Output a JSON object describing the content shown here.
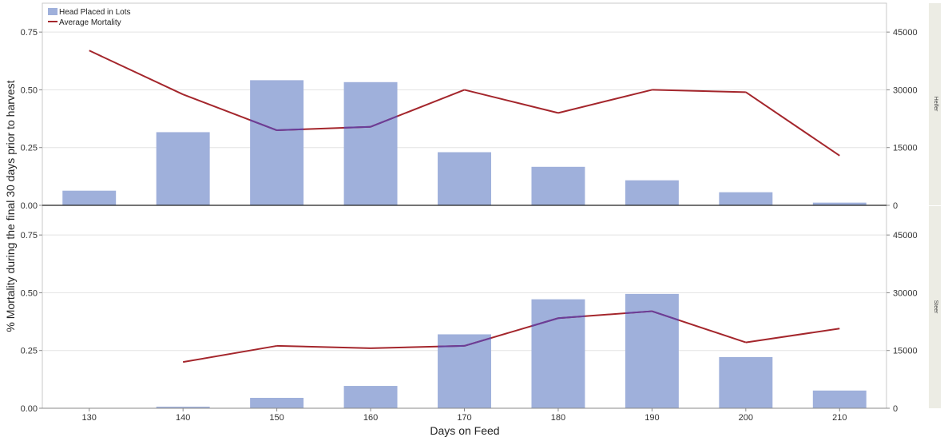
{
  "chart_data": {
    "type": "bar",
    "xlabel": "Days on Feed",
    "ylabel": "% Mortality during the final 30 days prior to harvest",
    "categories": [
      130,
      140,
      150,
      160,
      170,
      180,
      190,
      200,
      210
    ],
    "left_ylim": [
      0,
      0.875
    ],
    "left_ticks": [
      "0.00",
      "0.25",
      "0.50",
      "0.75"
    ],
    "right_ylim": [
      0,
      52500
    ],
    "right_ticks": [
      "0",
      "15000",
      "30000",
      "45000"
    ],
    "legend": {
      "position": "top-left",
      "bar_label": "Head Placed in Lots",
      "line_label": "Average Mortality"
    },
    "colors": {
      "bar": "#9fb0db",
      "line": "#a4262c",
      "overlap_line": "#6a3e9a"
    },
    "grid": true,
    "panels": [
      {
        "strip_label": "Heifer",
        "bars": [
          3800,
          19000,
          32500,
          32000,
          13800,
          10000,
          6500,
          3400,
          700
        ],
        "line": [
          0.67,
          0.48,
          0.325,
          0.34,
          0.5,
          0.4,
          0.5,
          0.49,
          0.215
        ]
      },
      {
        "strip_label": "Steer",
        "bars": [
          0,
          400,
          2700,
          5800,
          19200,
          28300,
          29700,
          13300,
          4600
        ],
        "line": [
          null,
          0.2,
          0.27,
          0.26,
          0.27,
          0.39,
          0.42,
          0.285,
          0.345
        ]
      }
    ]
  }
}
